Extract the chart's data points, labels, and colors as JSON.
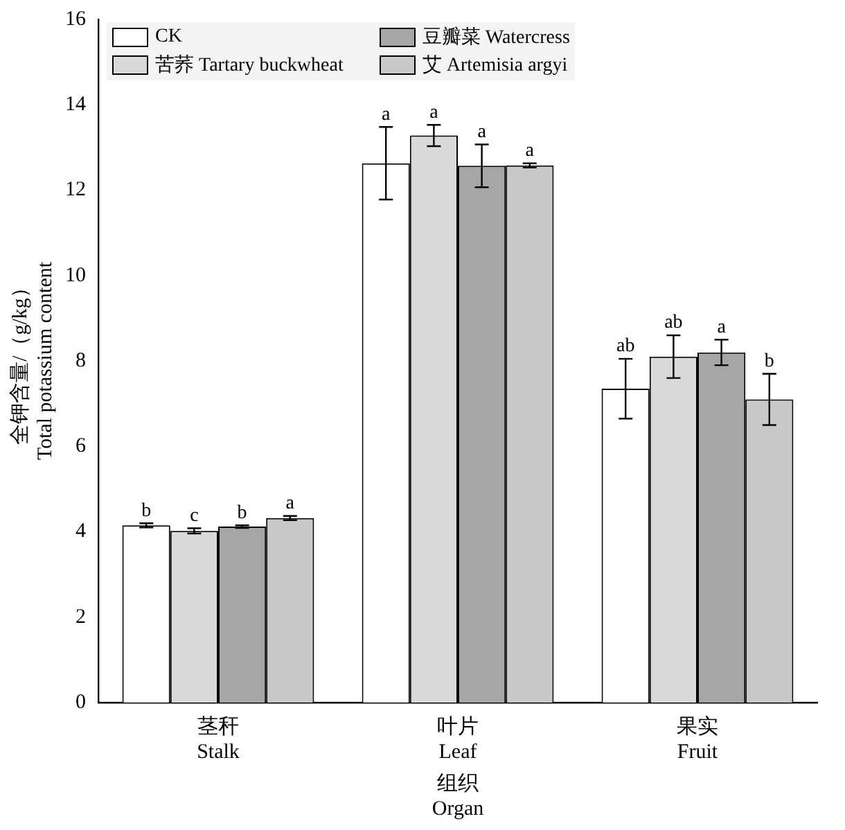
{
  "chart_data": {
    "type": "bar",
    "categories": [
      "茎秆\nStalk",
      "叶片\nLeaf",
      "果实\nFruit"
    ],
    "xlabel": "组织\nOrgan",
    "ylabel": "全钾含量/（g/kg）\nTotal potassium content",
    "ylim": [
      0,
      16
    ],
    "yticks": [
      0,
      2,
      4,
      6,
      8,
      10,
      12,
      14,
      16
    ],
    "grid": false,
    "legend": "top left",
    "series": [
      {
        "name": "CK",
        "color": "#ffffff",
        "values": [
          4.15,
          12.63,
          7.35
        ],
        "errors": [
          0.05,
          0.85,
          0.7
        ],
        "value_labels": [
          "b",
          "a",
          "ab"
        ]
      },
      {
        "name": "苦荞 Tartary buckwheat",
        "color": "#d9d9d9",
        "values": [
          4.02,
          13.28,
          8.1
        ],
        "errors": [
          0.06,
          0.25,
          0.5
        ],
        "value_labels": [
          "c",
          "a",
          "ab"
        ]
      },
      {
        "name": "豆瓣菜 Watercress",
        "color": "#a6a6a6",
        "values": [
          4.12,
          12.57,
          8.2
        ],
        "errors": [
          0.03,
          0.5,
          0.3
        ],
        "value_labels": [
          "b",
          "a",
          "a"
        ]
      },
      {
        "name": "艾 Artemisia argyi",
        "color": "#c8c8c8",
        "values": [
          4.32,
          12.58,
          7.1
        ],
        "errors": [
          0.05,
          0.05,
          0.6
        ],
        "value_labels": [
          "a",
          "a",
          "b"
        ]
      }
    ]
  }
}
